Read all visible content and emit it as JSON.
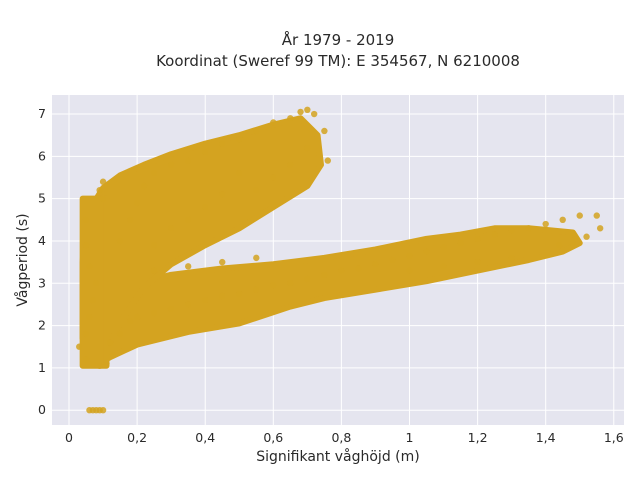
{
  "chart_data": {
    "type": "scatter",
    "title": "År 1979 - 2019",
    "subtitle": "Koordinat (Sweref 99 TM): E 354567, N 6210008",
    "xlabel": "Signifikant våghöjd (m)",
    "ylabel": "Vågperiod (s)",
    "xlim": [
      -0.05,
      1.63
    ],
    "ylim": [
      -0.35,
      7.45
    ],
    "x_ticks": [
      0,
      0.2,
      0.4,
      0.6,
      0.8,
      1.0,
      1.2,
      1.4,
      1.6
    ],
    "x_tick_labels": [
      "0",
      "0,2",
      "0,4",
      "0,6",
      "0,8",
      "1",
      "1,2",
      "1,4",
      "1,6"
    ],
    "y_ticks": [
      0,
      1,
      2,
      3,
      4,
      5,
      6,
      7
    ],
    "y_tick_labels": [
      "0",
      "1",
      "2",
      "3",
      "4",
      "5",
      "6",
      "7"
    ],
    "grid": true,
    "background": "#e5e5ef",
    "marker_color": "#d4a320",
    "series": [
      {
        "values": [
          [
            0.06,
            0.0
          ],
          [
            0.07,
            0.0
          ],
          [
            0.08,
            0.0
          ],
          [
            0.09,
            0.0
          ],
          [
            0.1,
            0.0
          ],
          [
            0.03,
            1.5
          ],
          [
            0.05,
            1.2
          ],
          [
            0.07,
            1.1
          ],
          [
            0.09,
            1.05
          ],
          [
            0.11,
            1.1
          ],
          [
            0.13,
            1.3
          ],
          [
            0.05,
            1.8
          ],
          [
            0.06,
            2.2
          ],
          [
            0.07,
            2.6
          ],
          [
            0.08,
            3.0
          ],
          [
            0.06,
            3.4
          ],
          [
            0.05,
            3.9
          ],
          [
            0.05,
            4.5
          ],
          [
            0.09,
            5.2
          ],
          [
            0.1,
            5.4
          ],
          [
            0.1,
            5.0
          ],
          [
            0.12,
            1.6
          ],
          [
            0.15,
            1.8
          ],
          [
            0.18,
            2.1
          ],
          [
            0.2,
            2.2
          ],
          [
            0.25,
            2.3
          ],
          [
            0.3,
            2.4
          ],
          [
            0.35,
            2.5
          ],
          [
            0.4,
            2.6
          ],
          [
            0.45,
            2.7
          ],
          [
            0.5,
            2.75
          ],
          [
            0.55,
            2.85
          ],
          [
            0.6,
            2.95
          ],
          [
            0.65,
            3.0
          ],
          [
            0.7,
            3.1
          ],
          [
            0.75,
            3.2
          ],
          [
            0.8,
            3.3
          ],
          [
            0.85,
            3.35
          ],
          [
            0.9,
            3.45
          ],
          [
            0.95,
            3.55
          ],
          [
            1.0,
            3.65
          ],
          [
            1.05,
            3.75
          ],
          [
            1.1,
            3.85
          ],
          [
            1.15,
            3.95
          ],
          [
            1.2,
            4.05
          ],
          [
            1.25,
            4.15
          ],
          [
            1.3,
            4.25
          ],
          [
            1.35,
            4.3
          ],
          [
            1.4,
            4.4
          ],
          [
            1.45,
            4.5
          ],
          [
            1.5,
            4.6
          ],
          [
            1.55,
            4.6
          ],
          [
            1.56,
            4.3
          ],
          [
            1.52,
            4.1
          ],
          [
            1.48,
            3.95
          ],
          [
            1.44,
            3.9
          ],
          [
            1.3,
            3.6
          ],
          [
            1.2,
            3.5
          ],
          [
            1.1,
            3.4
          ],
          [
            1.0,
            3.3
          ],
          [
            0.25,
            3.3
          ],
          [
            0.35,
            3.4
          ],
          [
            0.45,
            3.5
          ],
          [
            0.55,
            3.6
          ],
          [
            0.15,
            4.0
          ],
          [
            0.18,
            4.5
          ],
          [
            0.2,
            4.9
          ],
          [
            0.22,
            5.3
          ],
          [
            0.25,
            5.6
          ],
          [
            0.3,
            5.8
          ],
          [
            0.35,
            5.9
          ],
          [
            0.4,
            6.1
          ],
          [
            0.45,
            6.3
          ],
          [
            0.5,
            6.4
          ],
          [
            0.55,
            6.6
          ],
          [
            0.6,
            6.8
          ],
          [
            0.65,
            6.9
          ],
          [
            0.68,
            7.05
          ],
          [
            0.7,
            7.1
          ],
          [
            0.72,
            7.0
          ],
          [
            0.75,
            6.6
          ],
          [
            0.76,
            5.9
          ],
          [
            0.5,
            5.6
          ],
          [
            0.45,
            5.1
          ],
          [
            0.4,
            4.8
          ],
          [
            0.35,
            4.5
          ],
          [
            0.3,
            4.3
          ],
          [
            0.25,
            3.9
          ],
          [
            0.55,
            5.2
          ],
          [
            0.6,
            5.5
          ],
          [
            0.65,
            5.8
          ],
          [
            0.7,
            6.2
          ]
        ]
      }
    ]
  }
}
